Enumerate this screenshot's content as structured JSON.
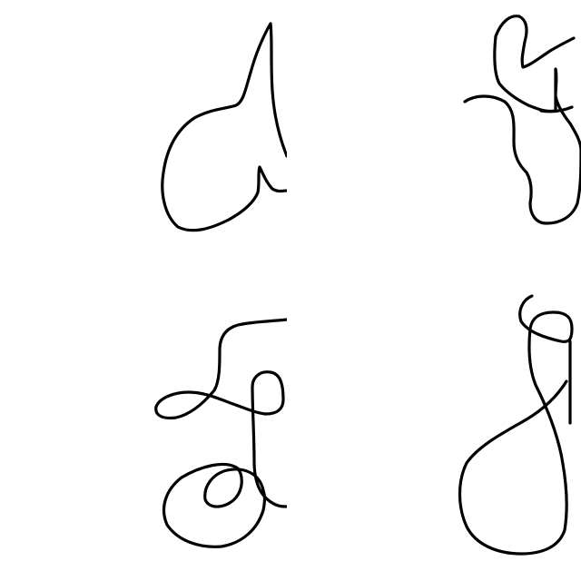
{
  "canvas": {
    "background": "#ffffff",
    "stroke_color": "#000000"
  },
  "doodles": [
    {
      "name": "doodle-top-left",
      "clipped_right": true
    },
    {
      "name": "doodle-top-right",
      "clipped_right": true
    },
    {
      "name": "doodle-bottom-left",
      "clipped_right": true
    },
    {
      "name": "doodle-bottom-right",
      "clipped_right": true
    }
  ]
}
